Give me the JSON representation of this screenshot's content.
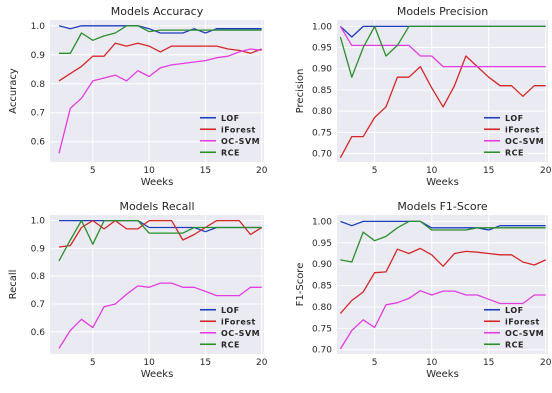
{
  "chart_data": [
    {
      "type": "line",
      "title": "Models Accuracy",
      "xlabel": "Weeks",
      "ylabel": "Accuracy",
      "xlim": [
        1.2,
        20.2
      ],
      "ylim": [
        0.53,
        1.02
      ],
      "xticks": [
        5,
        10,
        15,
        20
      ],
      "yticks": [
        0.6,
        0.7,
        0.8,
        0.9,
        1.0
      ],
      "ytick_labels": [
        "0.6",
        "0.7",
        "0.8",
        "0.9",
        "1.0"
      ],
      "grid": true,
      "legend_position": "bottom-right",
      "x": [
        2,
        3,
        4,
        5,
        6,
        7,
        8,
        9,
        10,
        11,
        12,
        13,
        14,
        15,
        16,
        17,
        18,
        19,
        20
      ],
      "series": [
        {
          "name": "LOF",
          "color": "#1f3fbf",
          "values": [
            1.0,
            0.99,
            1.0,
            1.0,
            1.0,
            1.0,
            1.0,
            1.0,
            0.99,
            0.975,
            0.975,
            0.975,
            0.99,
            0.975,
            0.99,
            0.99,
            0.99,
            0.99,
            0.99
          ]
        },
        {
          "name": "iForest",
          "color": "#d62728",
          "values": [
            0.81,
            0.835,
            0.86,
            0.895,
            0.895,
            0.94,
            0.93,
            0.94,
            0.93,
            0.91,
            0.93,
            0.93,
            0.93,
            0.93,
            0.93,
            0.92,
            0.915,
            0.905,
            0.92
          ]
        },
        {
          "name": "OC-SVM",
          "color": "#e23ee2",
          "values": [
            0.56,
            0.715,
            0.75,
            0.81,
            0.82,
            0.83,
            0.81,
            0.845,
            0.825,
            0.855,
            0.865,
            0.87,
            0.875,
            0.88,
            0.89,
            0.895,
            0.91,
            0.92,
            0.915
          ]
        },
        {
          "name": "RCE",
          "color": "#2a8f2a",
          "values": [
            0.905,
            0.905,
            0.975,
            0.95,
            0.965,
            0.975,
            1.0,
            1.0,
            0.98,
            0.985,
            0.985,
            0.985,
            0.985,
            0.985,
            0.985,
            0.985,
            0.985,
            0.985,
            0.985
          ]
        }
      ]
    },
    {
      "type": "line",
      "title": "Models Precision",
      "xlabel": "Weeks",
      "ylabel": "Precision",
      "xlim": [
        1.7,
        20.2
      ],
      "ylim": [
        0.68,
        1.015
      ],
      "xticks": [
        5,
        10,
        15,
        20
      ],
      "yticks": [
        0.7,
        0.75,
        0.8,
        0.85,
        0.9,
        0.95,
        1.0
      ],
      "ytick_labels": [
        "0.70",
        "0.75",
        "0.80",
        "0.85",
        "0.90",
        "0.95",
        "1.00"
      ],
      "grid": true,
      "legend_position": "bottom-right",
      "x": [
        2,
        3,
        4,
        5,
        6,
        7,
        8,
        9,
        10,
        11,
        12,
        13,
        14,
        15,
        16,
        17,
        18,
        19,
        20
      ],
      "series": [
        {
          "name": "LOF",
          "color": "#1f3fbf",
          "values": [
            1.0,
            0.975,
            1.0,
            1.0,
            1.0,
            1.0,
            1.0,
            1.0,
            1.0,
            1.0,
            1.0,
            1.0,
            1.0,
            1.0,
            1.0,
            1.0,
            1.0,
            1.0,
            1.0
          ]
        },
        {
          "name": "iForest",
          "color": "#d62728",
          "values": [
            0.69,
            0.74,
            0.74,
            0.785,
            0.81,
            0.88,
            0.88,
            0.905,
            0.855,
            0.81,
            0.86,
            0.93,
            0.905,
            0.88,
            0.86,
            0.86,
            0.835,
            0.86,
            0.86
          ]
        },
        {
          "name": "OC-SVM",
          "color": "#e23ee2",
          "values": [
            1.0,
            0.955,
            0.955,
            0.955,
            0.955,
            0.955,
            0.955,
            0.93,
            0.93,
            0.905,
            0.905,
            0.905,
            0.905,
            0.905,
            0.905,
            0.905,
            0.905,
            0.905,
            0.905
          ]
        },
        {
          "name": "RCE",
          "color": "#2a8f2a",
          "values": [
            0.975,
            0.88,
            0.95,
            1.0,
            0.93,
            0.955,
            1.0,
            1.0,
            1.0,
            1.0,
            1.0,
            1.0,
            1.0,
            1.0,
            1.0,
            1.0,
            1.0,
            1.0,
            1.0
          ]
        }
      ]
    },
    {
      "type": "line",
      "title": "Models Recall",
      "xlabel": "Weeks",
      "ylabel": "Recall",
      "xlim": [
        1.2,
        20.2
      ],
      "ylim": [
        0.52,
        1.02
      ],
      "xticks": [
        5,
        10,
        15,
        20
      ],
      "yticks": [
        0.6,
        0.7,
        0.8,
        0.9,
        1.0
      ],
      "ytick_labels": [
        "0.6",
        "0.7",
        "0.8",
        "0.9",
        "1.0"
      ],
      "grid": true,
      "legend_position": "bottom-right",
      "x": [
        2,
        3,
        4,
        5,
        6,
        7,
        8,
        9,
        10,
        11,
        12,
        13,
        14,
        15,
        16,
        17,
        18,
        19,
        20
      ],
      "series": [
        {
          "name": "LOF",
          "color": "#1f3fbf",
          "values": [
            1.0,
            1.0,
            1.0,
            1.0,
            1.0,
            1.0,
            1.0,
            1.0,
            0.975,
            0.975,
            0.975,
            0.975,
            0.975,
            0.96,
            0.975,
            0.975,
            0.975,
            0.975,
            0.975
          ]
        },
        {
          "name": "iForest",
          "color": "#d62728",
          "values": [
            0.905,
            0.91,
            0.975,
            1.0,
            0.97,
            1.0,
            0.97,
            0.97,
            1.0,
            1.0,
            1.0,
            0.93,
            0.95,
            0.975,
            1.0,
            1.0,
            1.0,
            0.95,
            0.975
          ]
        },
        {
          "name": "OC-SVM",
          "color": "#e23ee2",
          "values": [
            0.54,
            0.605,
            0.645,
            0.615,
            0.69,
            0.7,
            0.735,
            0.765,
            0.76,
            0.775,
            0.775,
            0.76,
            0.76,
            0.745,
            0.73,
            0.73,
            0.73,
            0.76,
            0.76
          ]
        },
        {
          "name": "RCE",
          "color": "#2a8f2a",
          "values": [
            0.855,
            0.93,
            1.0,
            0.915,
            1.0,
            1.0,
            1.0,
            1.0,
            0.955,
            0.955,
            0.955,
            0.955,
            0.975,
            0.975,
            0.975,
            0.975,
            0.975,
            0.975,
            0.975
          ]
        }
      ]
    },
    {
      "type": "line",
      "title": "Models F1-Score",
      "xlabel": "Weeks",
      "ylabel": "F1-Score",
      "xlim": [
        1.7,
        20.2
      ],
      "ylim": [
        0.69,
        1.015
      ],
      "xticks": [
        5,
        10,
        15,
        20
      ],
      "yticks": [
        0.7,
        0.75,
        0.8,
        0.85,
        0.9,
        0.95,
        1.0
      ],
      "ytick_labels": [
        "0.70",
        "0.75",
        "0.80",
        "0.85",
        "0.90",
        "0.95",
        "1.00"
      ],
      "grid": true,
      "legend_position": "bottom-right",
      "x": [
        2,
        3,
        4,
        5,
        6,
        7,
        8,
        9,
        10,
        11,
        12,
        13,
        14,
        15,
        16,
        17,
        18,
        19,
        20
      ],
      "series": [
        {
          "name": "LOF",
          "color": "#1f3fbf",
          "values": [
            1.0,
            0.99,
            1.0,
            1.0,
            1.0,
            1.0,
            1.0,
            1.0,
            0.985,
            0.985,
            0.985,
            0.985,
            0.985,
            0.98,
            0.99,
            0.99,
            0.99,
            0.99,
            0.99
          ]
        },
        {
          "name": "iForest",
          "color": "#d62728",
          "values": [
            0.785,
            0.815,
            0.835,
            0.88,
            0.882,
            0.935,
            0.925,
            0.937,
            0.922,
            0.895,
            0.925,
            0.93,
            0.928,
            0.925,
            0.922,
            0.922,
            0.905,
            0.898,
            0.91
          ]
        },
        {
          "name": "OC-SVM",
          "color": "#e23ee2",
          "values": [
            0.702,
            0.745,
            0.77,
            0.752,
            0.805,
            0.81,
            0.82,
            0.838,
            0.828,
            0.837,
            0.837,
            0.828,
            0.828,
            0.818,
            0.808,
            0.808,
            0.808,
            0.828,
            0.828
          ]
        },
        {
          "name": "RCE",
          "color": "#2a8f2a",
          "values": [
            0.91,
            0.905,
            0.975,
            0.955,
            0.965,
            0.985,
            1.0,
            1.0,
            0.98,
            0.98,
            0.98,
            0.98,
            0.985,
            0.985,
            0.985,
            0.985,
            0.985,
            0.985,
            0.985
          ]
        }
      ]
    }
  ]
}
